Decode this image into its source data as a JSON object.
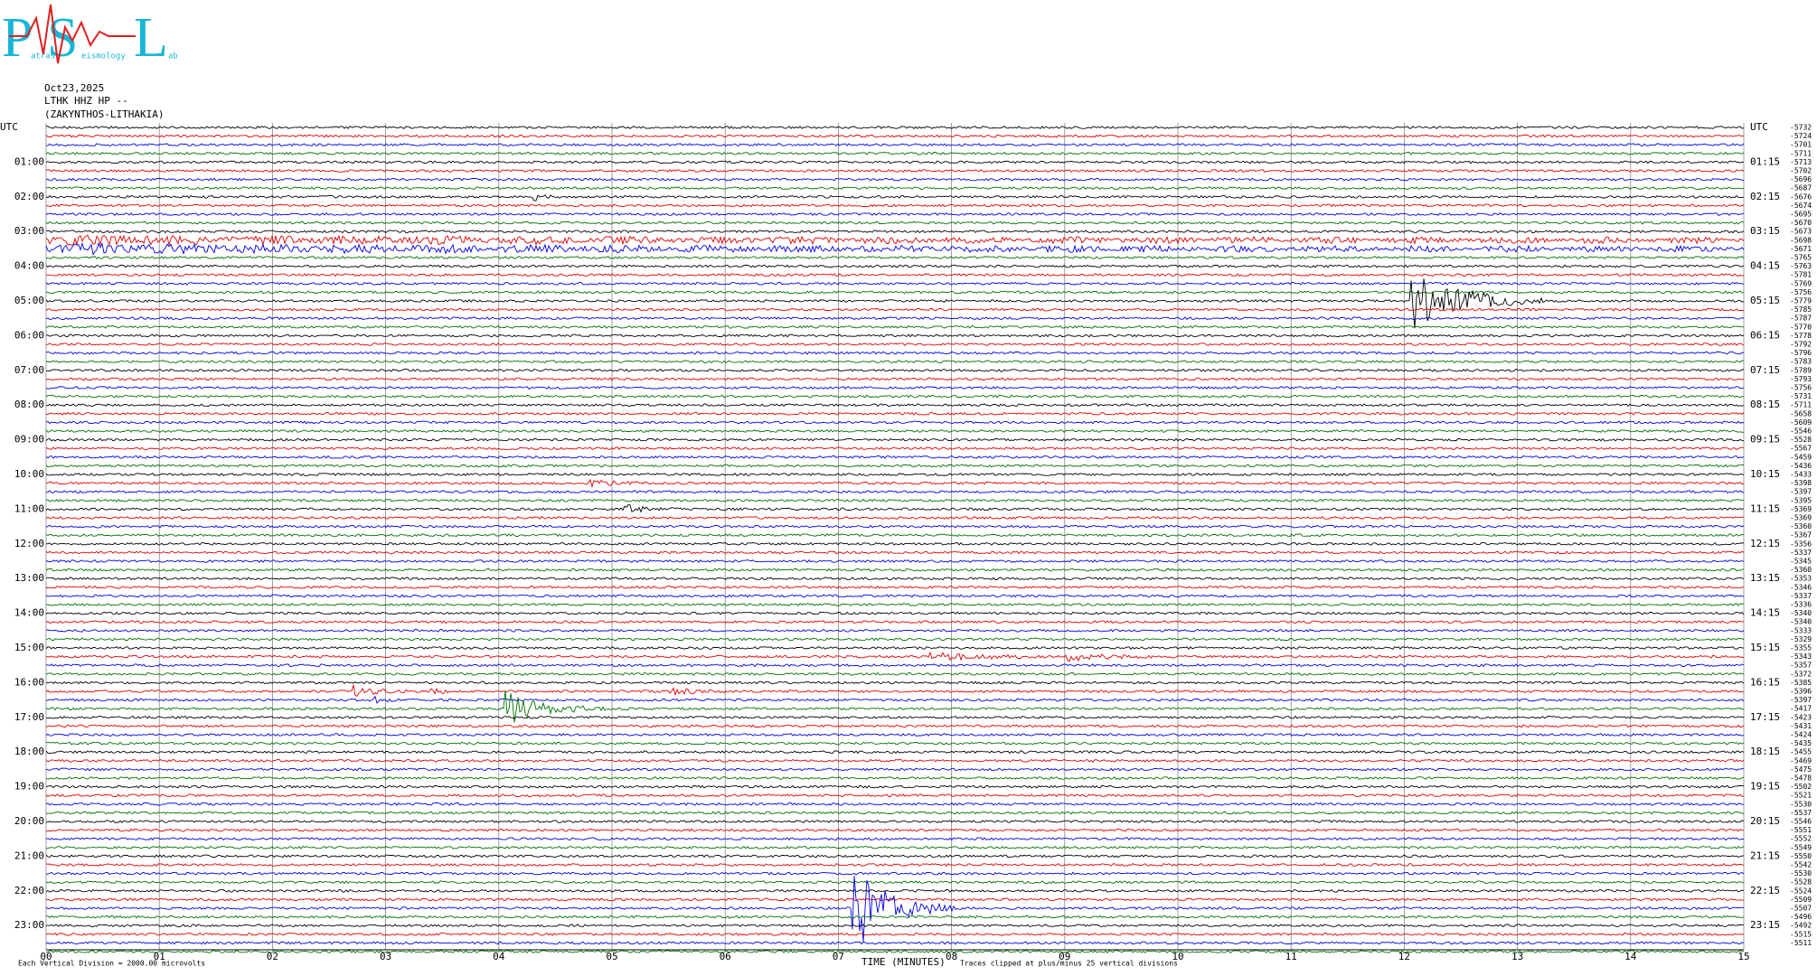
{
  "logo": {
    "letters": [
      "P",
      "S",
      "L"
    ],
    "words": [
      "atras",
      "eismology",
      "ab"
    ]
  },
  "header": {
    "date": "Oct23,2025",
    "station": "LTHK HHZ HP --",
    "location": "(ZAKYNTHOS-LITHAKIA)"
  },
  "left_labels": [
    "UTC",
    "01:00",
    "02:00",
    "03:00",
    "04:00",
    "05:00",
    "06:00",
    "07:00",
    "08:00",
    "09:00",
    "10:00",
    "11:00",
    "12:00",
    "13:00",
    "14:00",
    "15:00",
    "16:00",
    "17:00",
    "18:00",
    "19:00",
    "20:00",
    "21:00",
    "22:00",
    "23:00"
  ],
  "right_labels": [
    "UTC",
    "01:15",
    "02:15",
    "03:15",
    "04:15",
    "05:15",
    "06:15",
    "07:15",
    "08:15",
    "09:15",
    "10:15",
    "11:15",
    "12:15",
    "13:15",
    "14:15",
    "15:15",
    "16:15",
    "17:15",
    "18:15",
    "19:15",
    "20:15",
    "21:15",
    "22:15",
    "23:15"
  ],
  "row_offsets": [
    "-5732",
    "-5724",
    "-5701",
    "-5711",
    "-5713",
    "-5702",
    "-5696",
    "-5687",
    "-5676",
    "-5674",
    "-5695",
    "-5670",
    "-5673",
    "-5698",
    "-5671",
    "-5765",
    "-5763",
    "-5781",
    "-5769",
    "-5756",
    "-5779",
    "-5785",
    "-5787",
    "-5770",
    "-5778",
    "-5792",
    "-5796",
    "-5783",
    "-5789",
    "-5793",
    "-5756",
    "-5731",
    "-5711",
    "-5658",
    "-5609",
    "-5546",
    "-5528",
    "-5567",
    "-5459",
    "-5436",
    "-5433",
    "-5398",
    "-5397",
    "-5395",
    "-5369",
    "-5369",
    "-5360",
    "-5367",
    "-5356",
    "-5337",
    "-5345",
    "-5360",
    "-5353",
    "-5346",
    "-5337",
    "-5336",
    "-5340",
    "-5340",
    "-5333",
    "-5329",
    "-5355",
    "-5343",
    "-5357",
    "-5372",
    "-5385",
    "-5396",
    "-5397",
    "-5417",
    "-5423",
    "-5431",
    "-5424",
    "-5435",
    "-5455",
    "-5469",
    "-5475",
    "-5478",
    "-5502",
    "-5521",
    "-5530",
    "-5537",
    "-5546",
    "-5551",
    "-5552",
    "-5549",
    "-5550",
    "-5542",
    "-5530",
    "-5528",
    "-5524",
    "-5509",
    "-5507",
    "-5496",
    "-5492",
    "-5515",
    "-5511"
  ],
  "x_axis": {
    "ticks": [
      "00",
      "01",
      "02",
      "03",
      "04",
      "05",
      "06",
      "07",
      "08",
      "09",
      "10",
      "11",
      "12",
      "13",
      "14",
      "15"
    ],
    "title": "TIME (MINUTES)"
  },
  "footer": {
    "scale": "Each Vertical Division = 2000.00 microvolts",
    "clip": "Traces clipped at plus/minus 25 vertical divisions"
  }
}
